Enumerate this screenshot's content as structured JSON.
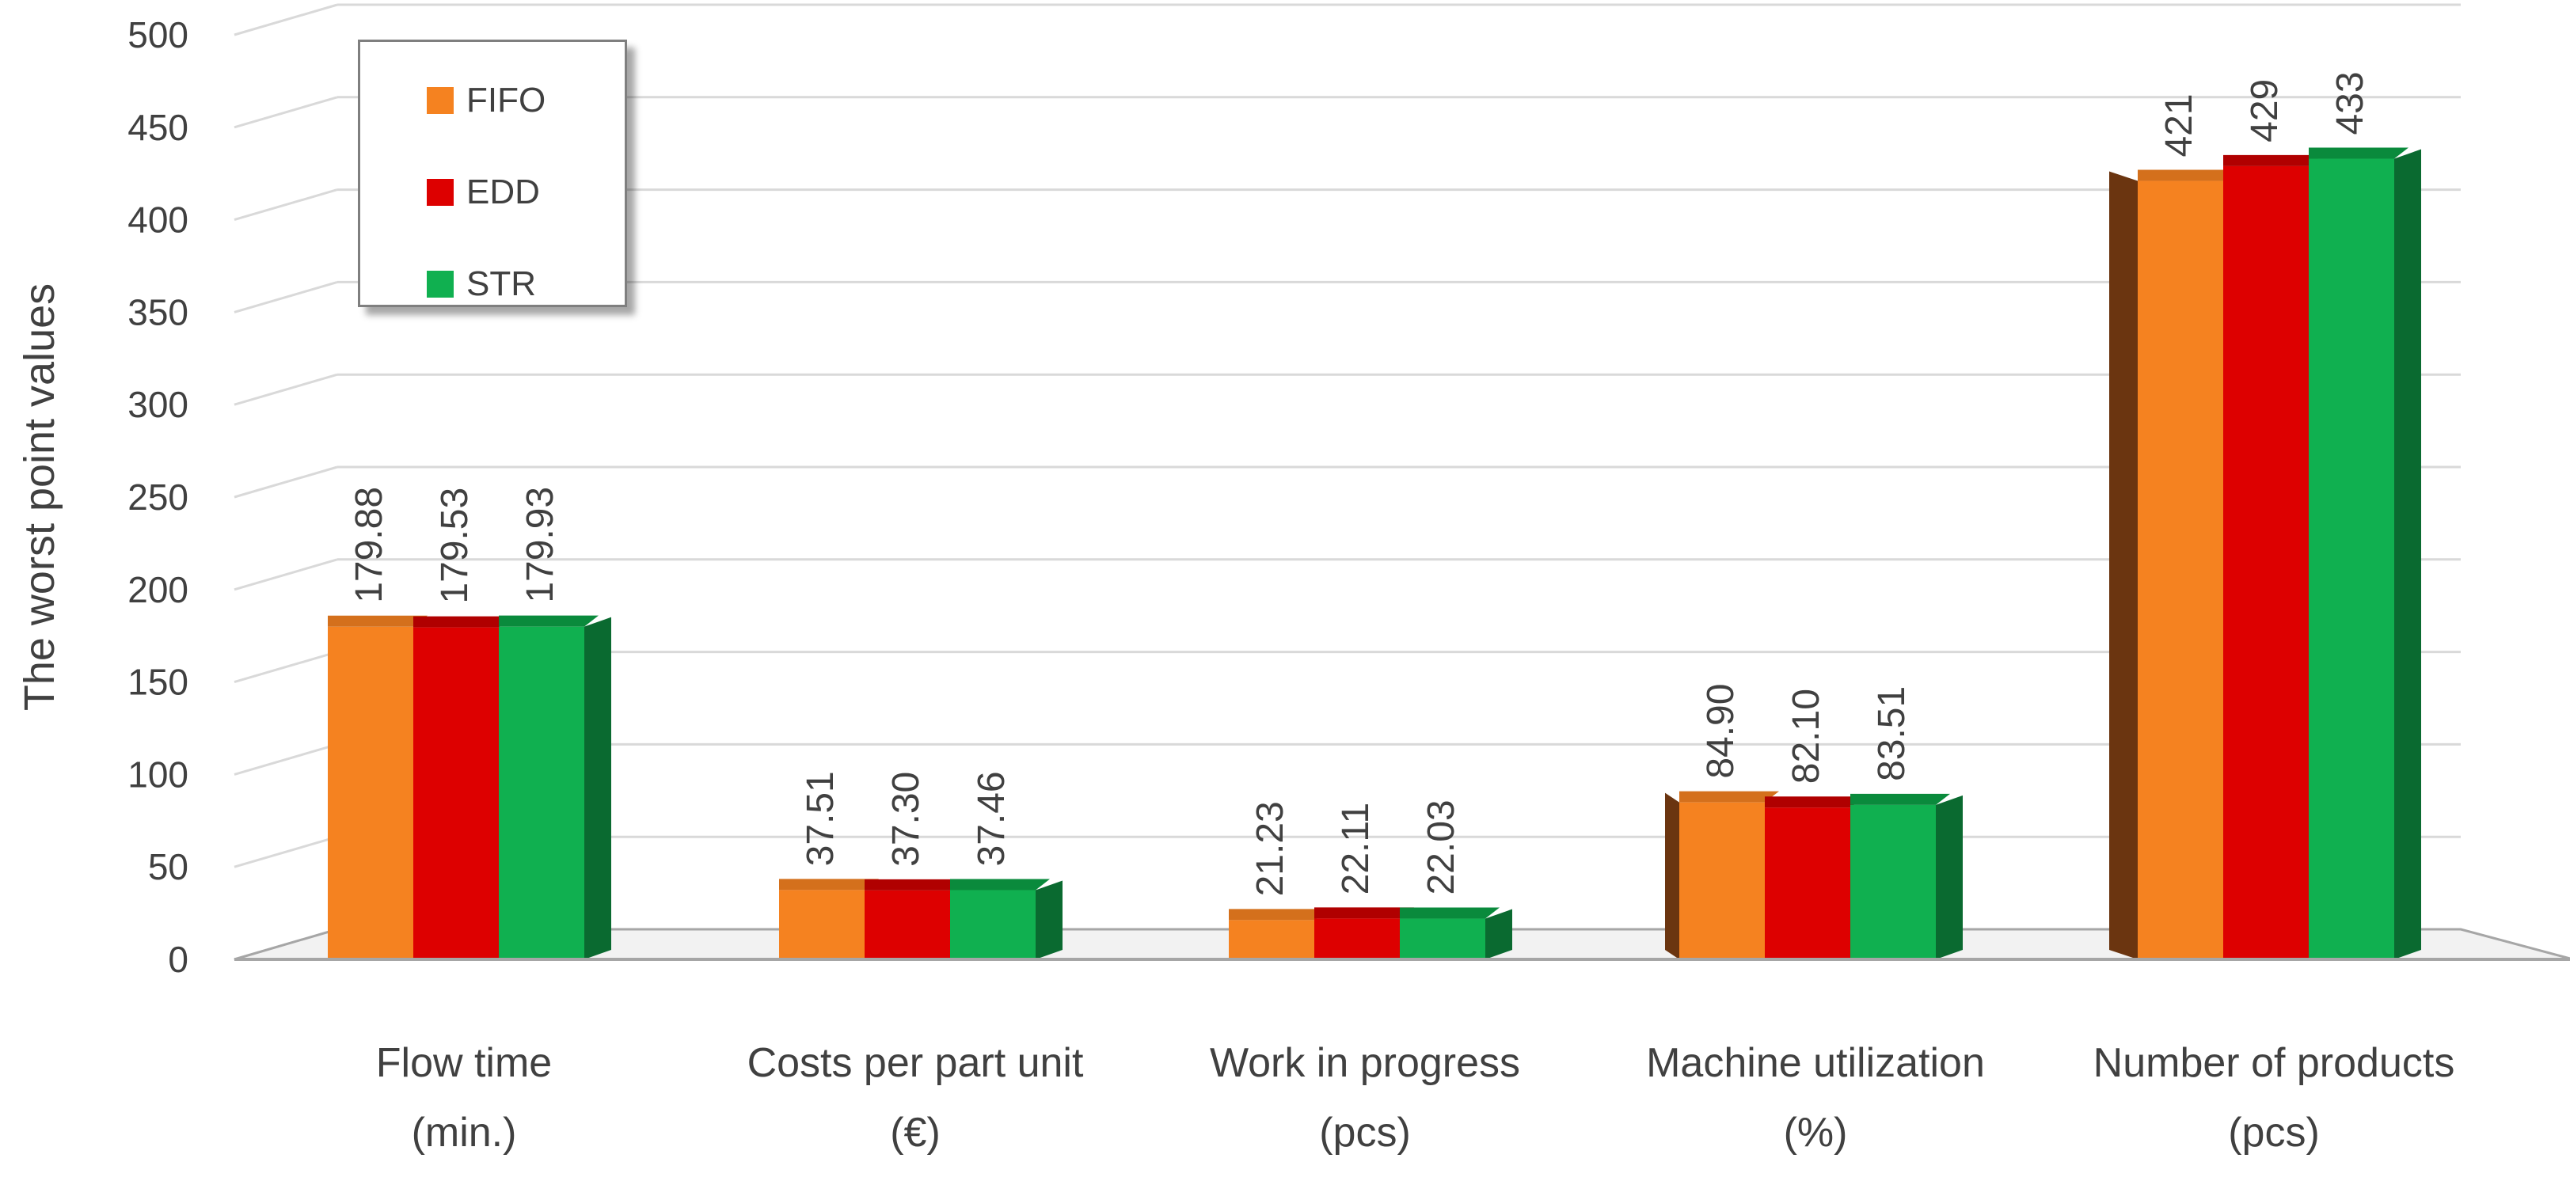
{
  "chart_data": {
    "type": "bar",
    "title": "",
    "ylabel": "The worst point values",
    "xlabel": "",
    "ylim": [
      0,
      500
    ],
    "yticks": [
      0,
      50,
      100,
      150,
      200,
      250,
      300,
      350,
      400,
      450,
      500
    ],
    "grid": true,
    "legend_position": "top-left",
    "categories": [
      [
        "Flow time",
        "(min.)"
      ],
      [
        "Costs per part unit",
        "(€)"
      ],
      [
        "Work in progress",
        "(pcs)"
      ],
      [
        "Machine utilization",
        "(%)"
      ],
      [
        "Number of products",
        "(pcs)"
      ]
    ],
    "series": [
      {
        "name": "FIFO",
        "values": [
          179.88,
          37.51,
          21.23,
          84.9,
          421
        ],
        "labels": [
          "179.88",
          "37.51",
          "21.23",
          "84.90",
          "421"
        ]
      },
      {
        "name": "EDD",
        "values": [
          179.53,
          37.3,
          22.11,
          82.1,
          429
        ],
        "labels": [
          "179.53",
          "37.30",
          "22.11",
          "82.10",
          "429"
        ]
      },
      {
        "name": "STR",
        "values": [
          179.93,
          37.46,
          22.03,
          83.51,
          433
        ],
        "labels": [
          "179.93",
          "37.46",
          "22.03",
          "83.51",
          "433"
        ]
      }
    ]
  },
  "colors": {
    "FIFO": {
      "front": "#f58220",
      "side": "#b85a10",
      "top": "#d4701c",
      "side_dark": "#6b3510"
    },
    "EDD": {
      "front": "#dd0000",
      "side": "#8a0000",
      "top": "#b00000"
    },
    "STR": {
      "front": "#10b050",
      "side": "#0a6a30",
      "top": "#0a8a3c"
    },
    "grid": "#d9d9d9",
    "axis": "#a6a6a6",
    "text": "#404040"
  },
  "legend": {
    "items": [
      {
        "label": "FIFO",
        "color": "#f58220"
      },
      {
        "label": "EDD",
        "color": "#dd0000"
      },
      {
        "label": "STR",
        "color": "#10b050"
      }
    ]
  }
}
